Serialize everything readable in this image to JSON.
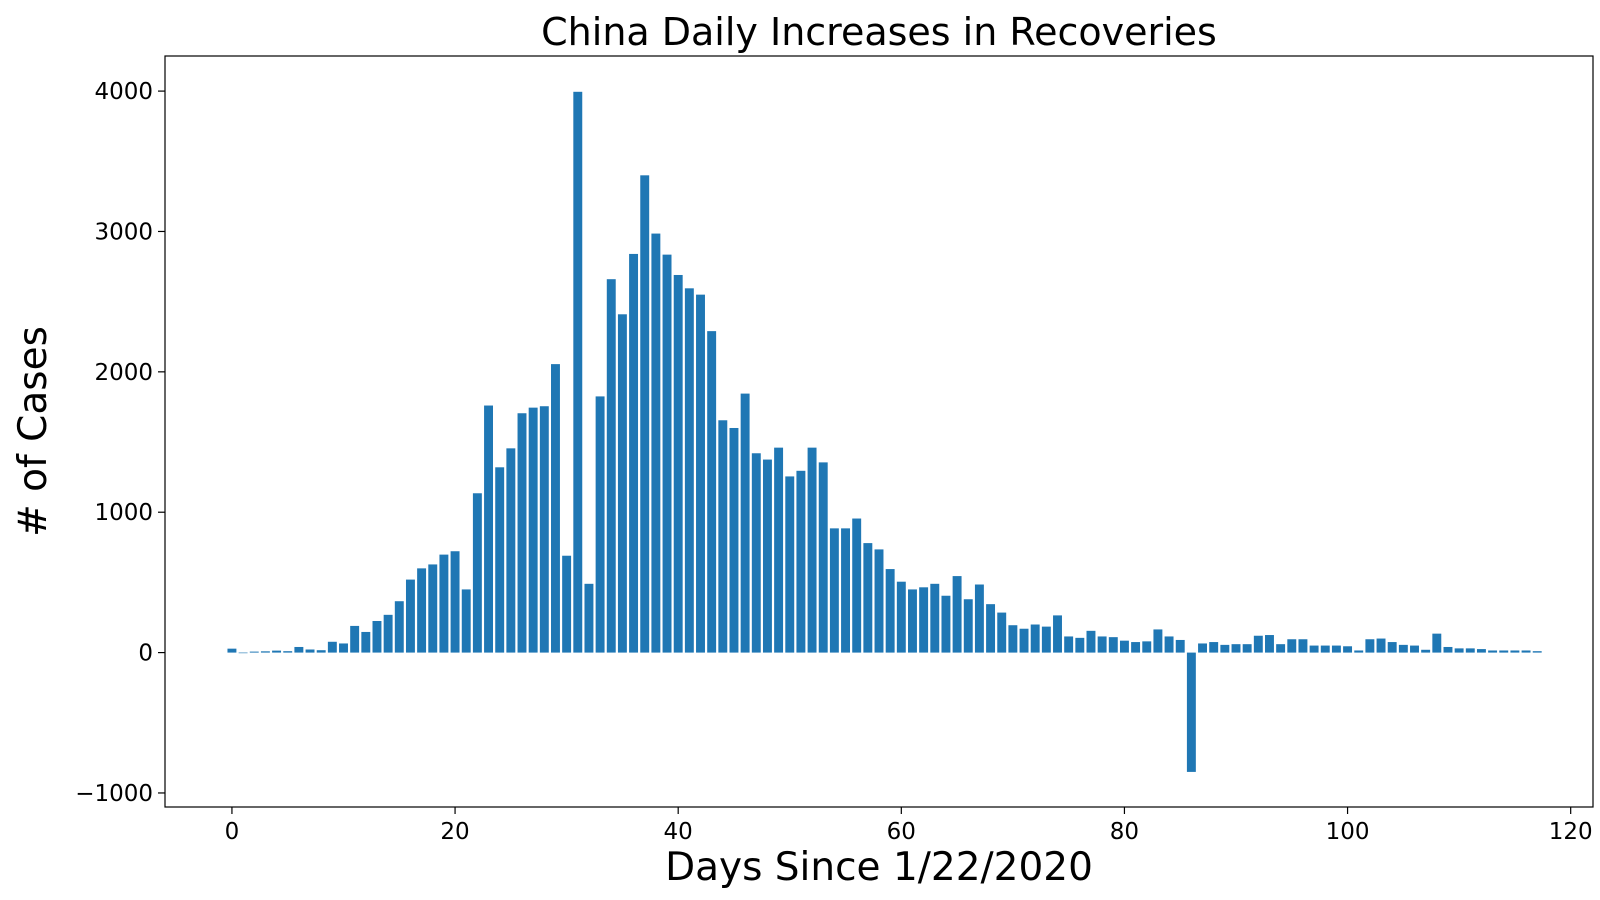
{
  "chart_data": {
    "type": "bar",
    "title": "China Daily Increases in Recoveries",
    "xlabel": "Days Since 1/22/2020",
    "ylabel": "# of Cases",
    "xlim": [
      -6,
      122
    ],
    "ylim": [
      -1100,
      4250
    ],
    "xticks": [
      0,
      20,
      40,
      60,
      80,
      100,
      120
    ],
    "yticks": [
      -1000,
      0,
      1000,
      2000,
      3000,
      4000
    ],
    "grid": false,
    "bar_color": "#1f77b4",
    "x": [
      0,
      1,
      2,
      3,
      4,
      5,
      6,
      7,
      8,
      9,
      10,
      11,
      12,
      13,
      14,
      15,
      16,
      17,
      18,
      19,
      20,
      21,
      22,
      23,
      24,
      25,
      26,
      27,
      28,
      29,
      30,
      31,
      32,
      33,
      34,
      35,
      36,
      37,
      38,
      39,
      40,
      41,
      42,
      43,
      44,
      45,
      46,
      47,
      48,
      49,
      50,
      51,
      52,
      53,
      54,
      55,
      56,
      57,
      58,
      59,
      60,
      61,
      62,
      63,
      64,
      65,
      66,
      67,
      68,
      69,
      70,
      71,
      72,
      73,
      74,
      75,
      76,
      77,
      78,
      79,
      80,
      81,
      82,
      83,
      84,
      85,
      86,
      87,
      88,
      89,
      90,
      91,
      92,
      93,
      94,
      95,
      96,
      97,
      98,
      99,
      100,
      101,
      102,
      103,
      104,
      105,
      106,
      107,
      108,
      109,
      110,
      111,
      112,
      113,
      114,
      115,
      116,
      117
    ],
    "values": [
      28,
      0,
      7,
      9,
      14,
      10,
      40,
      22,
      17,
      77,
      65,
      190,
      147,
      225,
      269,
      366,
      520,
      600,
      628,
      698,
      722,
      450,
      1135,
      1760,
      1320,
      1455,
      1705,
      1745,
      1755,
      2055,
      690,
      3995,
      490,
      1825,
      2660,
      2410,
      2840,
      3400,
      2985,
      2835,
      2690,
      2595,
      2550,
      2290,
      1655,
      1600,
      1845,
      1420,
      1375,
      1460,
      1255,
      1295,
      1460,
      1355,
      885,
      885,
      955,
      780,
      735,
      595,
      505,
      450,
      465,
      490,
      405,
      545,
      380,
      485,
      345,
      285,
      195,
      170,
      200,
      185,
      265,
      115,
      105,
      155,
      115,
      110,
      85,
      75,
      80,
      165,
      115,
      90,
      -850,
      65,
      75,
      55,
      60,
      60,
      120,
      125,
      60,
      95,
      95,
      50,
      50,
      50,
      45,
      15,
      95,
      100,
      75,
      55,
      50,
      20,
      135,
      40,
      30,
      30,
      25,
      15,
      15,
      15,
      15,
      10
    ]
  }
}
